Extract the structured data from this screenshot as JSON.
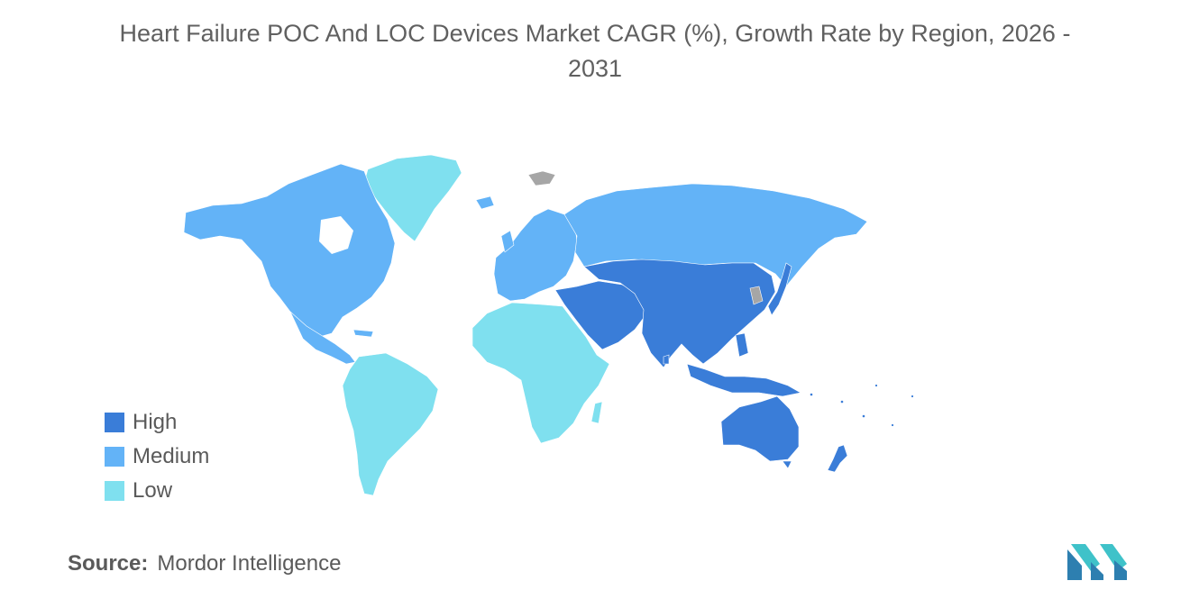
{
  "title": {
    "line1": "Heart Failure POC And LOC Devices Market CAGR (%), Growth Rate by Region, 2026 -",
    "line2": "2031"
  },
  "legend": {
    "items": [
      {
        "label": "High",
        "color": "#3a7dd8"
      },
      {
        "label": "Medium",
        "color": "#63b3f7"
      },
      {
        "label": "Low",
        "color": "#7fe0ef"
      }
    ]
  },
  "colors": {
    "high": "#3a7dd8",
    "medium": "#63b3f7",
    "low": "#7fe0ef",
    "no_data": "#a6a6a6"
  },
  "regions": {
    "north_america": "Medium",
    "south_america": "Low",
    "europe": "Medium",
    "russia": "Medium",
    "africa": "Low",
    "middle_east": "High",
    "asia_pacific": "High",
    "australia": "High",
    "greenland": "Low"
  },
  "source": {
    "label": "Source:",
    "value": "Mordor Intelligence"
  },
  "logo": {
    "icon": "mordor-intelligence-logo-icon"
  }
}
